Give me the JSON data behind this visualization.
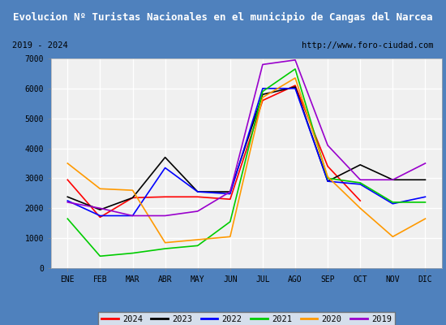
{
  "title": "Evolucion Nº Turistas Nacionales en el municipio de Cangas del Narcea",
  "subtitle_left": "2019 - 2024",
  "subtitle_right": "http://www.foro-ciudad.com",
  "title_bg_color": "#4f81bd",
  "title_text_color": "#ffffff",
  "months": [
    "ENE",
    "FEB",
    "MAR",
    "ABR",
    "MAY",
    "JUN",
    "JUL",
    "AGO",
    "SEP",
    "OCT",
    "NOV",
    "DIC"
  ],
  "series": {
    "2024": {
      "color": "#ff0000",
      "data": [
        2950,
        1700,
        2350,
        2380,
        2380,
        2300,
        5600,
        6100,
        3400,
        2250,
        null,
        null
      ]
    },
    "2023": {
      "color": "#000000",
      "data": [
        2380,
        1950,
        2350,
        3700,
        2550,
        2550,
        5800,
        6050,
        2900,
        3450,
        2950,
        2950
      ]
    },
    "2022": {
      "color": "#0000ff",
      "data": [
        2250,
        1750,
        1750,
        3350,
        2550,
        2480,
        6000,
        6000,
        2900,
        2800,
        2150,
        2380
      ]
    },
    "2021": {
      "color": "#00cc00",
      "data": [
        1650,
        400,
        500,
        650,
        750,
        1550,
        5900,
        6650,
        3000,
        2850,
        2200,
        2200
      ]
    },
    "2020": {
      "color": "#ff9900",
      "data": [
        3500,
        2650,
        2600,
        850,
        950,
        1050,
        5700,
        6350,
        3050,
        2000,
        1050,
        1650
      ]
    },
    "2019": {
      "color": "#9900cc",
      "data": [
        2200,
        2000,
        1750,
        1750,
        1900,
        2550,
        6800,
        6950,
        4100,
        2950,
        2950,
        3500
      ]
    }
  },
  "ylim": [
    0,
    7000
  ],
  "yticks": [
    0,
    1000,
    2000,
    3000,
    4000,
    5000,
    6000,
    7000
  ],
  "legend_order": [
    "2024",
    "2023",
    "2022",
    "2021",
    "2020",
    "2019"
  ],
  "plot_bg_color": "#f0f0f0",
  "grid_color": "#ffffff",
  "outer_bg_color": "#4f81bd",
  "inner_frame_bg": "#e8e8e8"
}
